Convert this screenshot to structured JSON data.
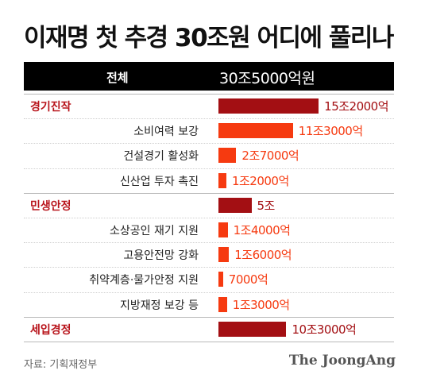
{
  "title": "이재명 첫 추경 30조원 어디에 풀리나",
  "source": "자료: 기획재정부",
  "brand": "The JoongAng",
  "colors": {
    "category_bar": "#a30f13",
    "sub_bar": "#f63a10",
    "category_text": "#b8141b",
    "total_bg": "#000000"
  },
  "chart_data": {
    "type": "bar",
    "orientation": "horizontal",
    "unit": "억",
    "total": {
      "label": "전체",
      "value": 305000,
      "value_label": "30조5000억원"
    },
    "rows": [
      {
        "kind": "category",
        "label": "경기진작",
        "value": 152000,
        "value_label": "15조2000억"
      },
      {
        "kind": "sub",
        "label": "소비여력 보강",
        "value": 113000,
        "value_label": "11조3000억"
      },
      {
        "kind": "sub",
        "label": "건설경기 활성화",
        "value": 27000,
        "value_label": "2조7000억"
      },
      {
        "kind": "sub",
        "label": "신산업 투자 촉진",
        "value": 12000,
        "value_label": "1조2000억"
      },
      {
        "kind": "category",
        "label": "민생안정",
        "value": 50000,
        "value_label": "5조"
      },
      {
        "kind": "sub",
        "label": "소상공인 재기 지원",
        "value": 14000,
        "value_label": "1조4000억"
      },
      {
        "kind": "sub",
        "label": "고용안전망 강화",
        "value": 16000,
        "value_label": "1조6000억"
      },
      {
        "kind": "sub",
        "label": "취약계층·물가안정 지원",
        "value": 7000,
        "value_label": "7000억"
      },
      {
        "kind": "sub",
        "label": "지방재정 보강 등",
        "value": 13000,
        "value_label": "1조3000억"
      },
      {
        "kind": "category",
        "label": "세입경정",
        "value": 103000,
        "value_label": "10조3000억"
      }
    ]
  }
}
